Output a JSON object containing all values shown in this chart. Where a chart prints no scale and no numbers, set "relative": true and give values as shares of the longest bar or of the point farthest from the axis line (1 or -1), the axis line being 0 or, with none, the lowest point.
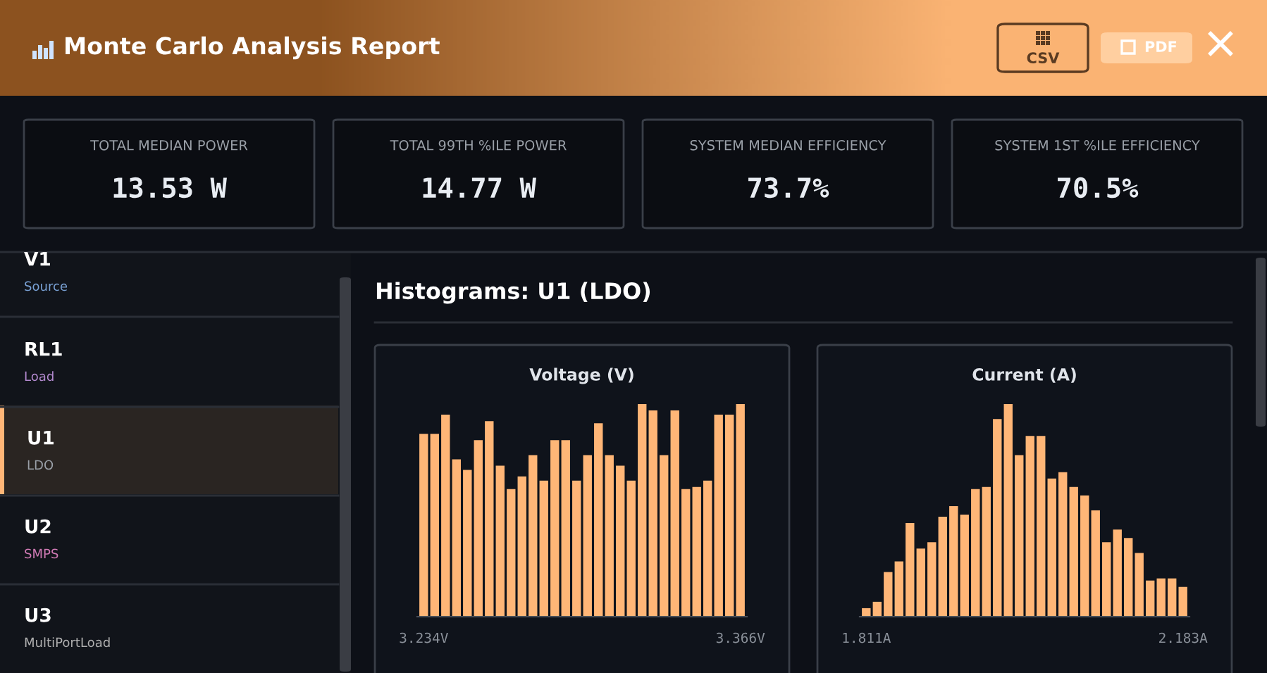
{
  "chart_data": [
    {
      "type": "other",
      "title": "Monte Carlo Analysis Report",
      "categories": [
        "TOTAL MEDIAN POWER",
        "TOTAL 99TH %ILE POWER",
        "SYSTEM MEDIAN EFFICIENCY",
        "SYSTEM 1ST %ILE EFFICIENCY"
      ],
      "values": [
        13.53,
        14.77,
        73.7,
        70.5
      ],
      "value_labels": [
        "13.53 W",
        "14.77 W",
        "73.7%",
        "70.5%"
      ],
      "annotations": [
        "CSV",
        "PDF",
        "V1",
        "Source",
        "RL1",
        "Load",
        "U1",
        "LDO",
        "U2",
        "SMPS",
        "U3",
        "MultiPortLoad",
        "Histograms: U1 (LDO)"
      ]
    },
    {
      "type": "bar",
      "title": "Voltage (V)",
      "relative": true,
      "color": "#ffb677",
      "categories": [
        "3.234V",
        null,
        null,
        null,
        null,
        null,
        null,
        null,
        null,
        null,
        null,
        null,
        null,
        null,
        null,
        null,
        null,
        null,
        null,
        null,
        null,
        null,
        null,
        null,
        null,
        null,
        null,
        null,
        null,
        "3.366V"
      ],
      "values": [
        0.86,
        0.86,
        0.95,
        0.74,
        0.69,
        0.83,
        0.92,
        0.71,
        0.6,
        0.66,
        0.76,
        0.64,
        0.83,
        0.83,
        0.64,
        0.76,
        0.91,
        0.76,
        0.71,
        0.64,
        1,
        0.97,
        0.76,
        0.97,
        0.6,
        0.61,
        0.64,
        0.95,
        0.95,
        1
      ]
    },
    {
      "type": "bar",
      "title": "Current (A)",
      "relative": true,
      "color": "#ffb677",
      "categories": [
        "1.811A",
        null,
        null,
        null,
        null,
        null,
        null,
        null,
        null,
        null,
        null,
        null,
        null,
        null,
        null,
        null,
        null,
        null,
        null,
        null,
        null,
        null,
        null,
        null,
        null,
        null,
        null,
        null,
        null,
        "2.183A"
      ],
      "values": [
        0.04,
        0.07,
        0.21,
        0.26,
        0.44,
        0.32,
        0.35,
        0.47,
        0.52,
        0.48,
        0.6,
        0.61,
        0.93,
        1,
        0.76,
        0.85,
        0.85,
        0.65,
        0.68,
        0.61,
        0.57,
        0.5,
        0.35,
        0.41,
        0.37,
        0.3,
        0.17,
        0.18,
        0.18,
        0.14
      ]
    }
  ]
}
